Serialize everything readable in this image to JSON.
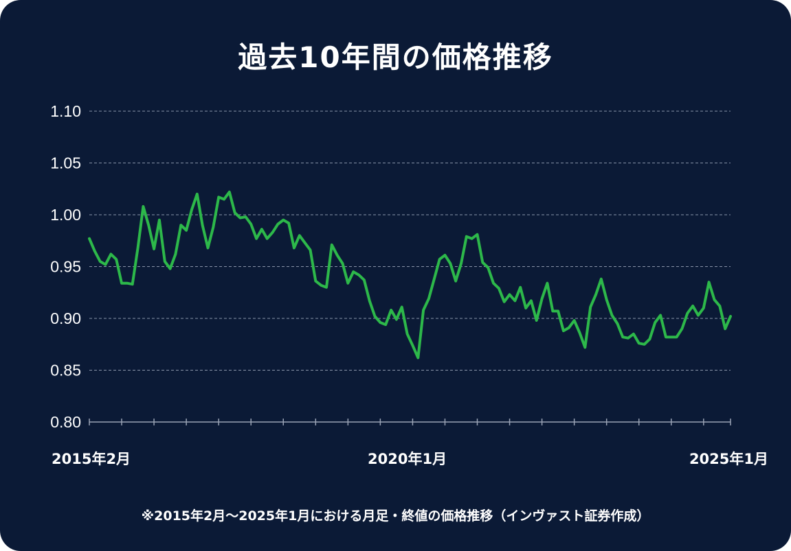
{
  "card": {
    "background": "#0b1a36"
  },
  "chart_data": {
    "type": "line",
    "title": "過去10年間の価格推移",
    "footnote": "※2015年2月～2025年1月における月足・終値の価格推移（インヴァスト証券作成）",
    "xlabel": "",
    "ylabel": "",
    "ylim": [
      0.8,
      1.1
    ],
    "yticks": [
      1.1,
      1.05,
      1.0,
      0.95,
      0.9,
      0.85,
      0.8
    ],
    "ytick_labels": [
      "1.10",
      "1.05",
      "1.00",
      "0.95",
      "0.90",
      "0.85",
      "0.80"
    ],
    "xtick_labels": [
      {
        "label": "2015年2月",
        "index": 0
      },
      {
        "label": "2020年1月",
        "index": 59
      },
      {
        "label": "2025年1月",
        "index": 119
      }
    ],
    "grid": true,
    "line_color": "#2db84a",
    "grid_color": "#8a95aa",
    "series": [
      {
        "name": "月足終値",
        "start": "2015年2月",
        "end": "2025年1月",
        "values": [
          0.977,
          0.965,
          0.955,
          0.952,
          0.962,
          0.957,
          0.934,
          0.934,
          0.933,
          0.968,
          1.008,
          0.99,
          0.967,
          0.995,
          0.955,
          0.948,
          0.962,
          0.99,
          0.985,
          1.005,
          1.02,
          0.99,
          0.968,
          0.988,
          1.017,
          1.015,
          1.022,
          1.002,
          0.997,
          0.998,
          0.991,
          0.977,
          0.986,
          0.977,
          0.983,
          0.991,
          0.995,
          0.992,
          0.968,
          0.98,
          0.973,
          0.966,
          0.936,
          0.932,
          0.93,
          0.971,
          0.961,
          0.953,
          0.934,
          0.945,
          0.942,
          0.937,
          0.917,
          0.902,
          0.896,
          0.894,
          0.908,
          0.899,
          0.911,
          0.885,
          0.874,
          0.862,
          0.908,
          0.919,
          0.938,
          0.957,
          0.961,
          0.953,
          0.936,
          0.953,
          0.979,
          0.977,
          0.981,
          0.954,
          0.949,
          0.934,
          0.929,
          0.916,
          0.923,
          0.917,
          0.93,
          0.91,
          0.917,
          0.898,
          0.919,
          0.934,
          0.907,
          0.907,
          0.888,
          0.891,
          0.898,
          0.886,
          0.872,
          0.911,
          0.923,
          0.938,
          0.918,
          0.903,
          0.895,
          0.882,
          0.881,
          0.885,
          0.876,
          0.875,
          0.88,
          0.896,
          0.903,
          0.882,
          0.882,
          0.882,
          0.89,
          0.905,
          0.912,
          0.903,
          0.91,
          0.935,
          0.918,
          0.912,
          0.89,
          0.902
        ]
      }
    ]
  }
}
